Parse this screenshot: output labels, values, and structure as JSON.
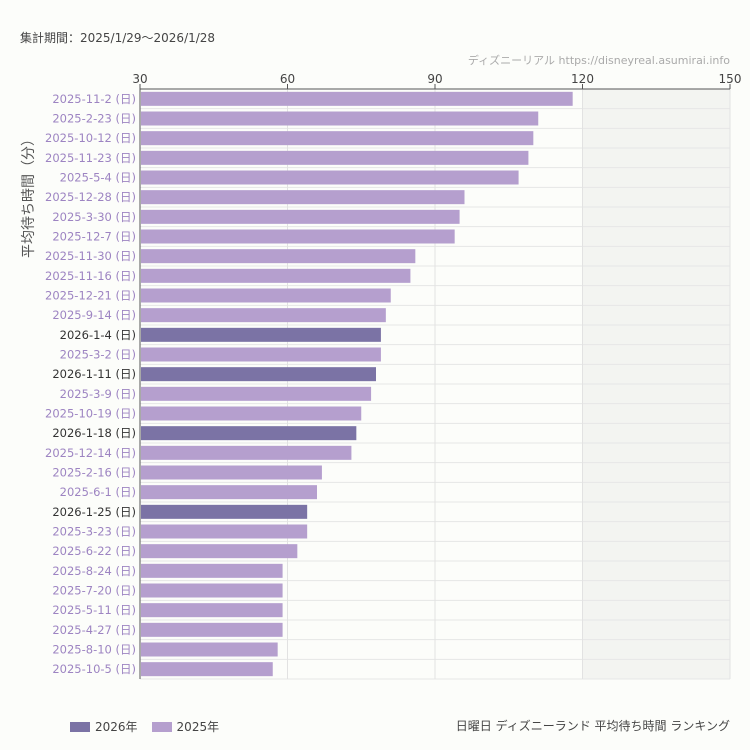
{
  "period": "集計期間：2025/1/29〜2026/1/28",
  "credit": "ディズニーリアル https://disneyreal.asumirai.info",
  "chart_data": {
    "type": "bar",
    "orientation": "horizontal",
    "title": "日曜日 ディズニーランド 平均待ち時間 ランキング",
    "ylabel": "平均待ち時間（分）",
    "xlim": [
      30,
      150
    ],
    "xticks": [
      30,
      60,
      90,
      120,
      150
    ],
    "grid": true,
    "shaded_region": [
      120,
      150
    ],
    "legend_position": "bottom-left",
    "series": [
      {
        "name": "2026年",
        "color": "#7b73a5"
      },
      {
        "name": "2025年",
        "color": "#b59fce"
      }
    ],
    "categories": [
      "2025-11-2 (日)",
      "2025-2-23 (日)",
      "2025-10-12 (日)",
      "2025-11-23 (日)",
      "2025-5-4 (日)",
      "2025-12-28 (日)",
      "2025-3-30 (日)",
      "2025-12-7 (日)",
      "2025-11-30 (日)",
      "2025-11-16 (日)",
      "2025-12-21 (日)",
      "2025-9-14 (日)",
      "2026-1-4 (日)",
      "2025-3-2 (日)",
      "2026-1-11 (日)",
      "2025-3-9 (日)",
      "2025-10-19 (日)",
      "2026-1-18 (日)",
      "2025-12-14 (日)",
      "2025-2-16 (日)",
      "2025-6-1 (日)",
      "2026-1-25 (日)",
      "2025-3-23 (日)",
      "2025-6-22 (日)",
      "2025-8-24 (日)",
      "2025-7-20 (日)",
      "2025-5-11 (日)",
      "2025-4-27 (日)",
      "2025-8-10 (日)",
      "2025-10-5 (日)"
    ],
    "values": [
      118,
      111,
      110,
      109,
      107,
      96,
      95,
      94,
      86,
      85,
      81,
      80,
      79,
      79,
      78,
      77,
      75,
      74,
      73,
      67,
      66,
      64,
      64,
      62,
      59,
      59,
      59,
      59,
      58,
      57
    ],
    "year": [
      "2025",
      "2025",
      "2025",
      "2025",
      "2025",
      "2025",
      "2025",
      "2025",
      "2025",
      "2025",
      "2025",
      "2025",
      "2026",
      "2025",
      "2026",
      "2025",
      "2025",
      "2026",
      "2025",
      "2025",
      "2025",
      "2026",
      "2025",
      "2025",
      "2025",
      "2025",
      "2025",
      "2025",
      "2025",
      "2025"
    ]
  }
}
